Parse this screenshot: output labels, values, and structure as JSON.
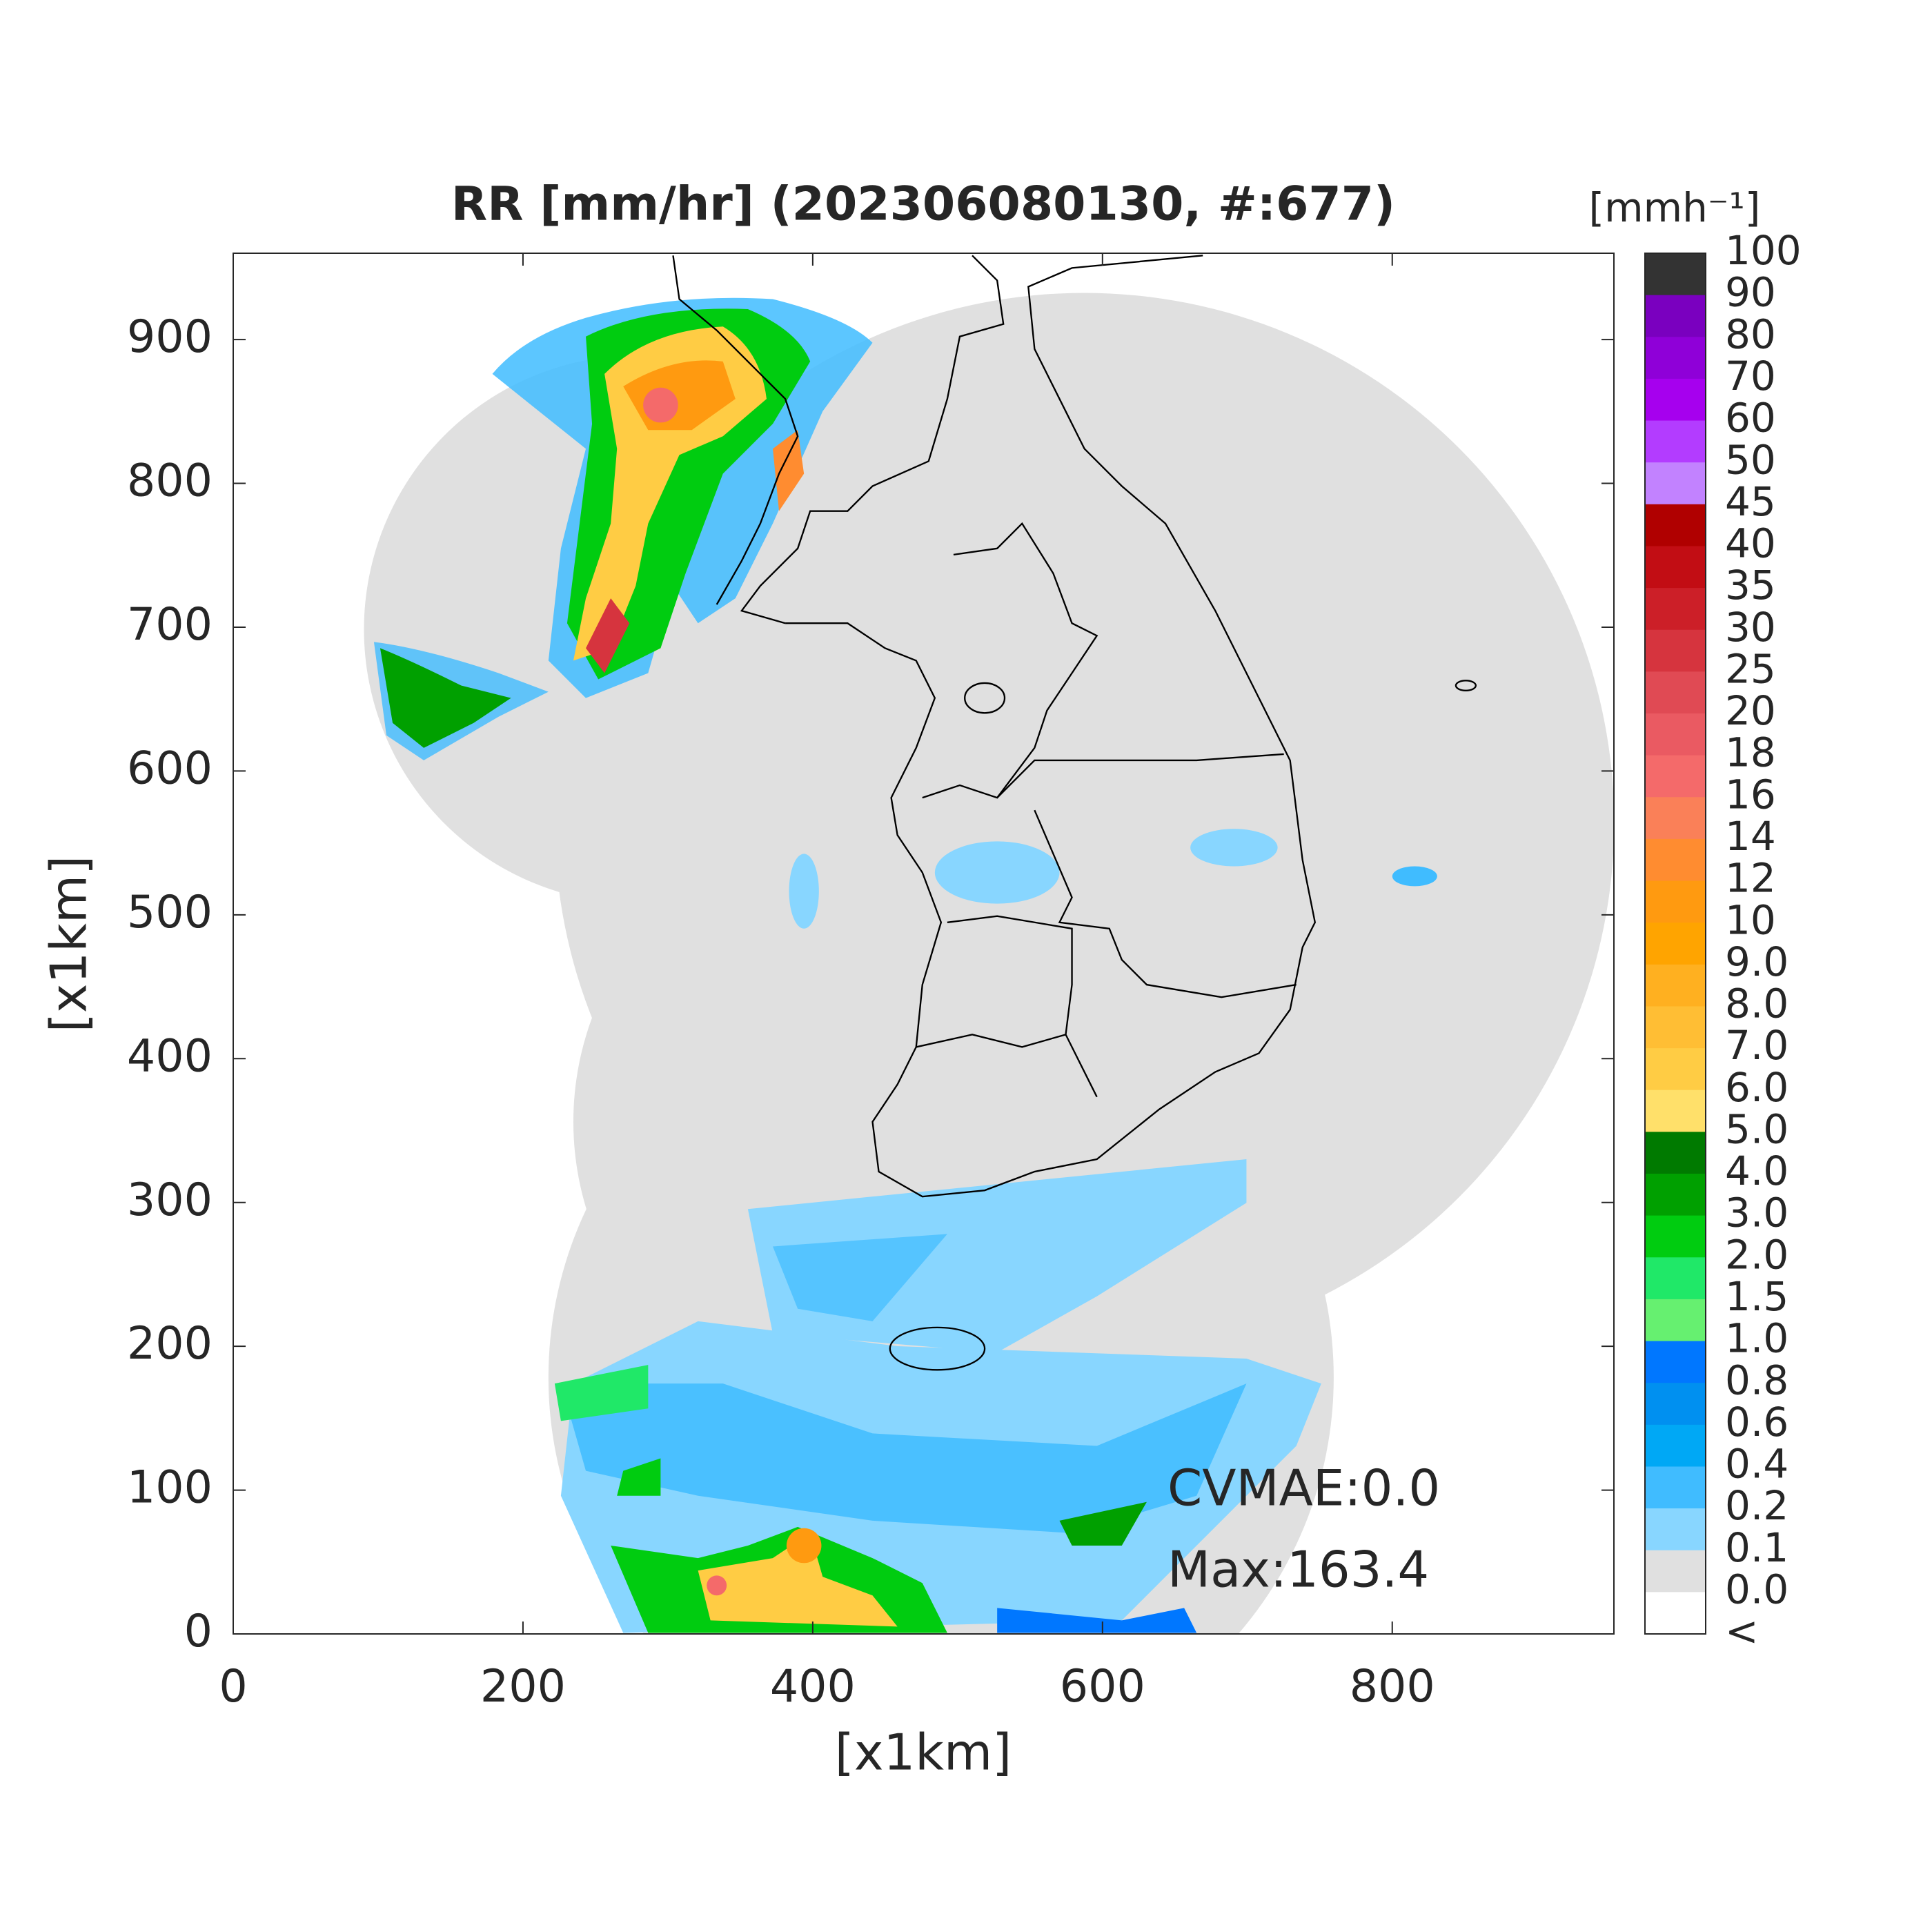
{
  "chart_data": {
    "type": "map",
    "title": "RR [mm/hr] (202306080130, #:677)",
    "xlabel": "[x1km]",
    "ylabel": "[x1km]",
    "xlim": [
      0,
      953
    ],
    "ylim": [
      0,
      960
    ],
    "xticks": [
      0,
      200,
      400,
      600,
      800
    ],
    "yticks": [
      0,
      100,
      200,
      300,
      400,
      500,
      600,
      700,
      800,
      900
    ],
    "annotations": [
      "CVMAE:0.0",
      "Max:163.4"
    ],
    "colorbar": {
      "title": "[mmh⁻¹]",
      "labels": [
        "100",
        "90",
        "80",
        "70",
        "60",
        "50",
        "45",
        "40",
        "35",
        "30",
        "25",
        "20",
        "18",
        "16",
        "14",
        "12",
        "10",
        "9.0",
        "8.0",
        "7.0",
        "6.0",
        "5.0",
        "4.0",
        "3.0",
        "2.0",
        "1.5",
        "1.0",
        "0.8",
        "0.6",
        "0.4",
        "0.2",
        "0.1",
        "0.0",
        "<"
      ],
      "colors": [
        "#333333",
        "#7a00bf",
        "#8f00d8",
        "#a600ee",
        "#b33cff",
        "#c282ff",
        "#b00000",
        "#c20d14",
        "#cc1f28",
        "#d6343e",
        "#e04a54",
        "#ea5a62",
        "#f46a6a",
        "#fa8058",
        "#ff8c30",
        "#ff9a10",
        "#ffa400",
        "#ffb020",
        "#ffbe34",
        "#ffcc44",
        "#ffe06a",
        "#007a00",
        "#00a000",
        "#00cc10",
        "#20e868",
        "#66f070",
        "#0077ff",
        "#0090f0",
        "#00a8f5",
        "#40bcff",
        "#88d6ff",
        "#e0e0e0",
        "#ffffff"
      ]
    }
  }
}
